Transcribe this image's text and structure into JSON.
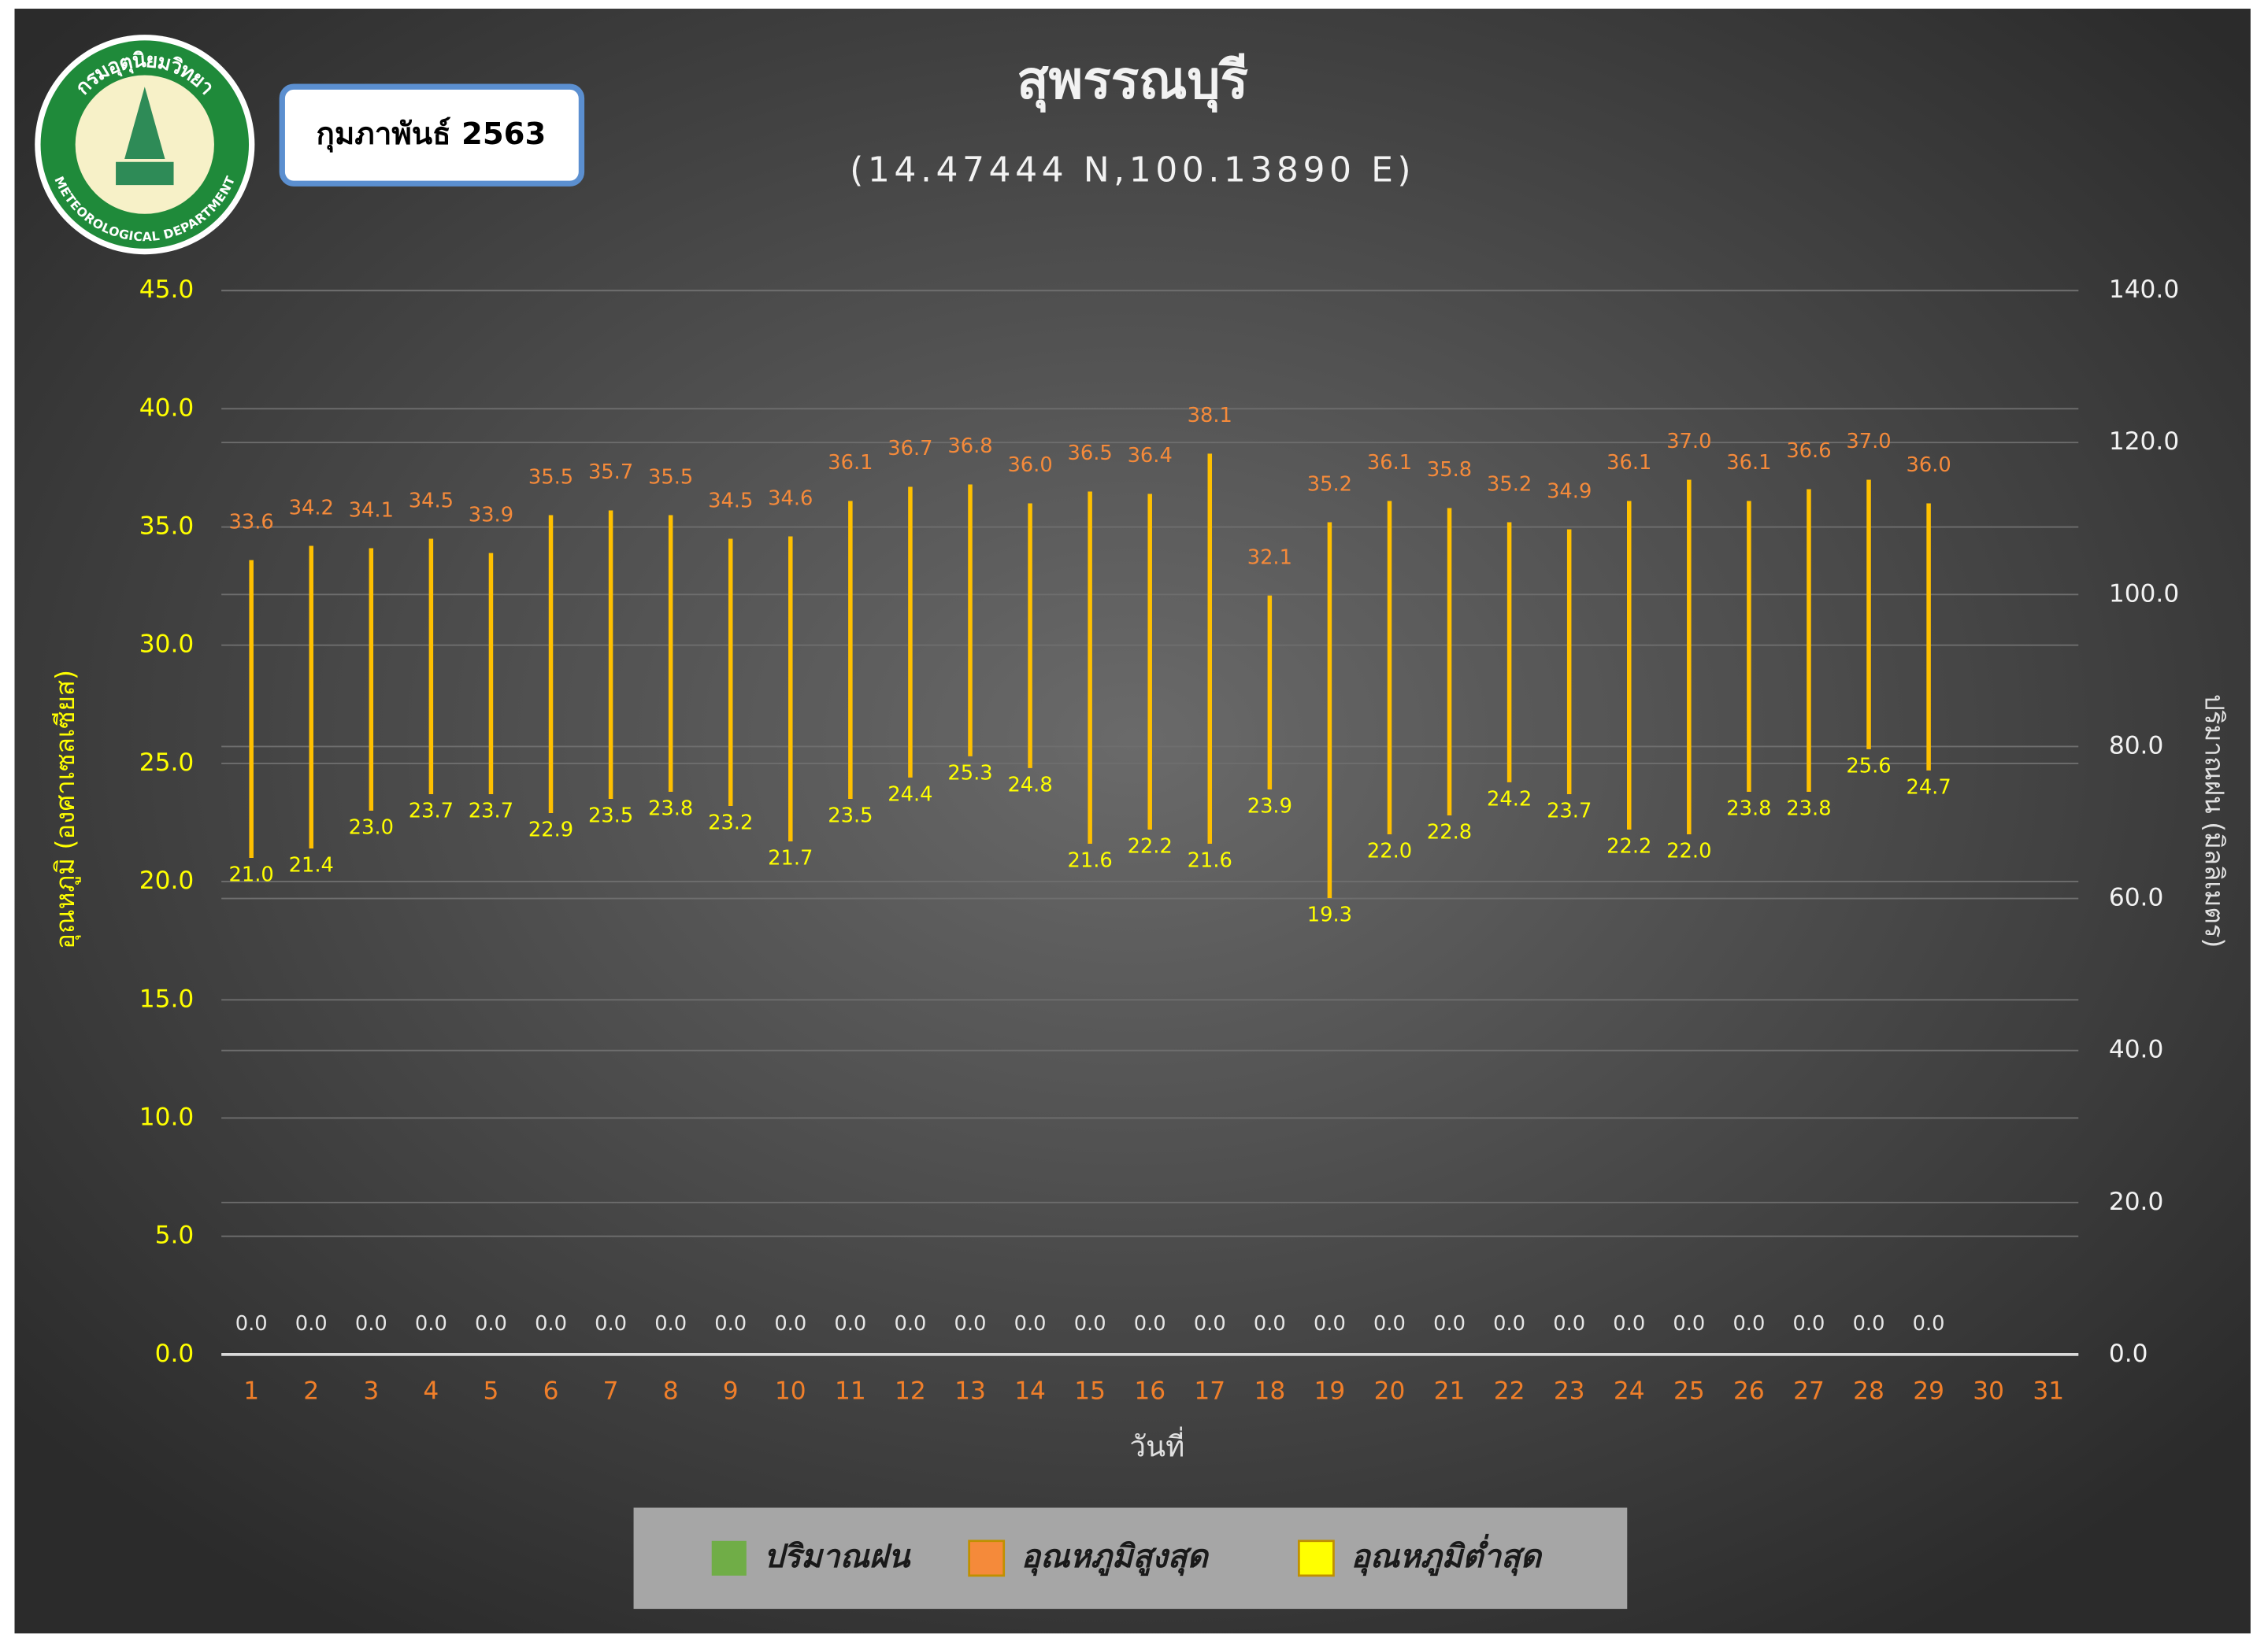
{
  "header": {
    "logo_text_top": "กรมอุตุนิยมวิทยา",
    "logo_text_bottom": "METEOROLOGICAL DEPARTMENT",
    "month": "กุมภาพันธ์ 2563"
  },
  "chart_data": {
    "type": "range",
    "title": "สุพรรณบุรี",
    "subtitle": "(14.47444 N,100.13890 E)",
    "x_label": "วันที่",
    "y_label": "อุณหภูมิ (องศาเซลเซียส)",
    "y2_label": "ปริมาณฝน (มิลลิเมตร)",
    "categories": [
      "1",
      "2",
      "3",
      "4",
      "5",
      "6",
      "7",
      "8",
      "9",
      "10",
      "11",
      "12",
      "13",
      "14",
      "15",
      "16",
      "17",
      "18",
      "19",
      "20",
      "21",
      "22",
      "23",
      "24",
      "25",
      "26",
      "27",
      "28",
      "29",
      "30",
      "31"
    ],
    "ylim": [
      0,
      45
    ],
    "yticks": [
      {
        "value": 0,
        "label": "0.0"
      },
      {
        "value": 5,
        "label": "5.0"
      },
      {
        "value": 10,
        "label": "10.0"
      },
      {
        "value": 15,
        "label": "15.0"
      },
      {
        "value": 20,
        "label": "20.0"
      },
      {
        "value": 25,
        "label": "25.0"
      },
      {
        "value": 30,
        "label": "30.0"
      },
      {
        "value": 35,
        "label": "35.0"
      },
      {
        "value": 40,
        "label": "40.0"
      },
      {
        "value": 45,
        "label": "45.0"
      }
    ],
    "y2lim": [
      0,
      140
    ],
    "y2ticks": [
      {
        "value": 0,
        "label": "0.0"
      },
      {
        "value": 20,
        "label": "20.0"
      },
      {
        "value": 40,
        "label": "40.0"
      },
      {
        "value": 60,
        "label": "60.0"
      },
      {
        "value": 80,
        "label": "80.0"
      },
      {
        "value": 100,
        "label": "100.0"
      },
      {
        "value": 120,
        "label": "120.0"
      },
      {
        "value": 140,
        "label": "140.0"
      }
    ],
    "grid": true,
    "range_color": "#ffc000",
    "series": [
      {
        "name": "ปริมาณฝน",
        "color": "#70ad47",
        "axis": "y2",
        "values": [
          0,
          0,
          0,
          0,
          0,
          0,
          0,
          0,
          0,
          0,
          0,
          0,
          0,
          0,
          0,
          0,
          0,
          0,
          0,
          0,
          0,
          0,
          0,
          0,
          0,
          0,
          0,
          0,
          0,
          null,
          null
        ],
        "value_labels": [
          "0.0",
          "0.0",
          "0.0",
          "0.0",
          "0.0",
          "0.0",
          "0.0",
          "0.0",
          "0.0",
          "0.0",
          "0.0",
          "0.0",
          "0.0",
          "0.0",
          "0.0",
          "0.0",
          "0.0",
          "0.0",
          "0.0",
          "0.0",
          "0.0",
          "0.0",
          "0.0",
          "0.0",
          "0.0",
          "0.0",
          "0.0",
          "0.0",
          "0.0",
          null,
          null
        ]
      },
      {
        "name": "อุณหภูมิสูงสุด",
        "color": "#f58a3a",
        "values": [
          33.6,
          34.2,
          34.1,
          34.5,
          33.9,
          35.5,
          35.7,
          35.5,
          34.5,
          34.6,
          36.1,
          36.7,
          36.8,
          36,
          36.5,
          36.4,
          38.1,
          32.1,
          35.2,
          36.1,
          35.8,
          35.2,
          34.9,
          36.1,
          37,
          36.1,
          36.6,
          37,
          36,
          null,
          null
        ],
        "value_labels": [
          "33.6",
          "34.2",
          "34.1",
          "34.5",
          "33.9",
          "35.5",
          "35.7",
          "35.5",
          "34.5",
          "34.6",
          "36.1",
          "36.7",
          "36.8",
          "36.0",
          "36.5",
          "36.4",
          "38.1",
          "32.1",
          "35.2",
          "36.1",
          "35.8",
          "35.2",
          "34.9",
          "36.1",
          "37.0",
          "36.1",
          "36.6",
          "37.0",
          "36.0",
          null,
          null
        ]
      },
      {
        "name": "อุณหภูมิต่ำสุด",
        "color": "#ffff00",
        "values": [
          21,
          21.4,
          23,
          23.7,
          23.7,
          22.9,
          23.5,
          23.8,
          23.2,
          21.7,
          23.5,
          24.4,
          25.3,
          24.8,
          21.6,
          22.2,
          21.6,
          23.9,
          19.3,
          22,
          22.8,
          24.2,
          23.7,
          22.2,
          22,
          23.8,
          23.8,
          25.6,
          24.7,
          null,
          null
        ],
        "value_labels": [
          "21.0",
          "21.4",
          "23.0",
          "23.7",
          "23.7",
          "22.9",
          "23.5",
          "23.8",
          "23.2",
          "21.7",
          "23.5",
          "24.4",
          "25.3",
          "24.8",
          "21.6",
          "22.2",
          "21.6",
          "23.9",
          "19.3",
          "22.0",
          "22.8",
          "24.2",
          "23.7",
          "22.2",
          "22.0",
          "23.8",
          "23.8",
          "25.6",
          "24.7",
          null,
          null
        ]
      }
    ]
  }
}
